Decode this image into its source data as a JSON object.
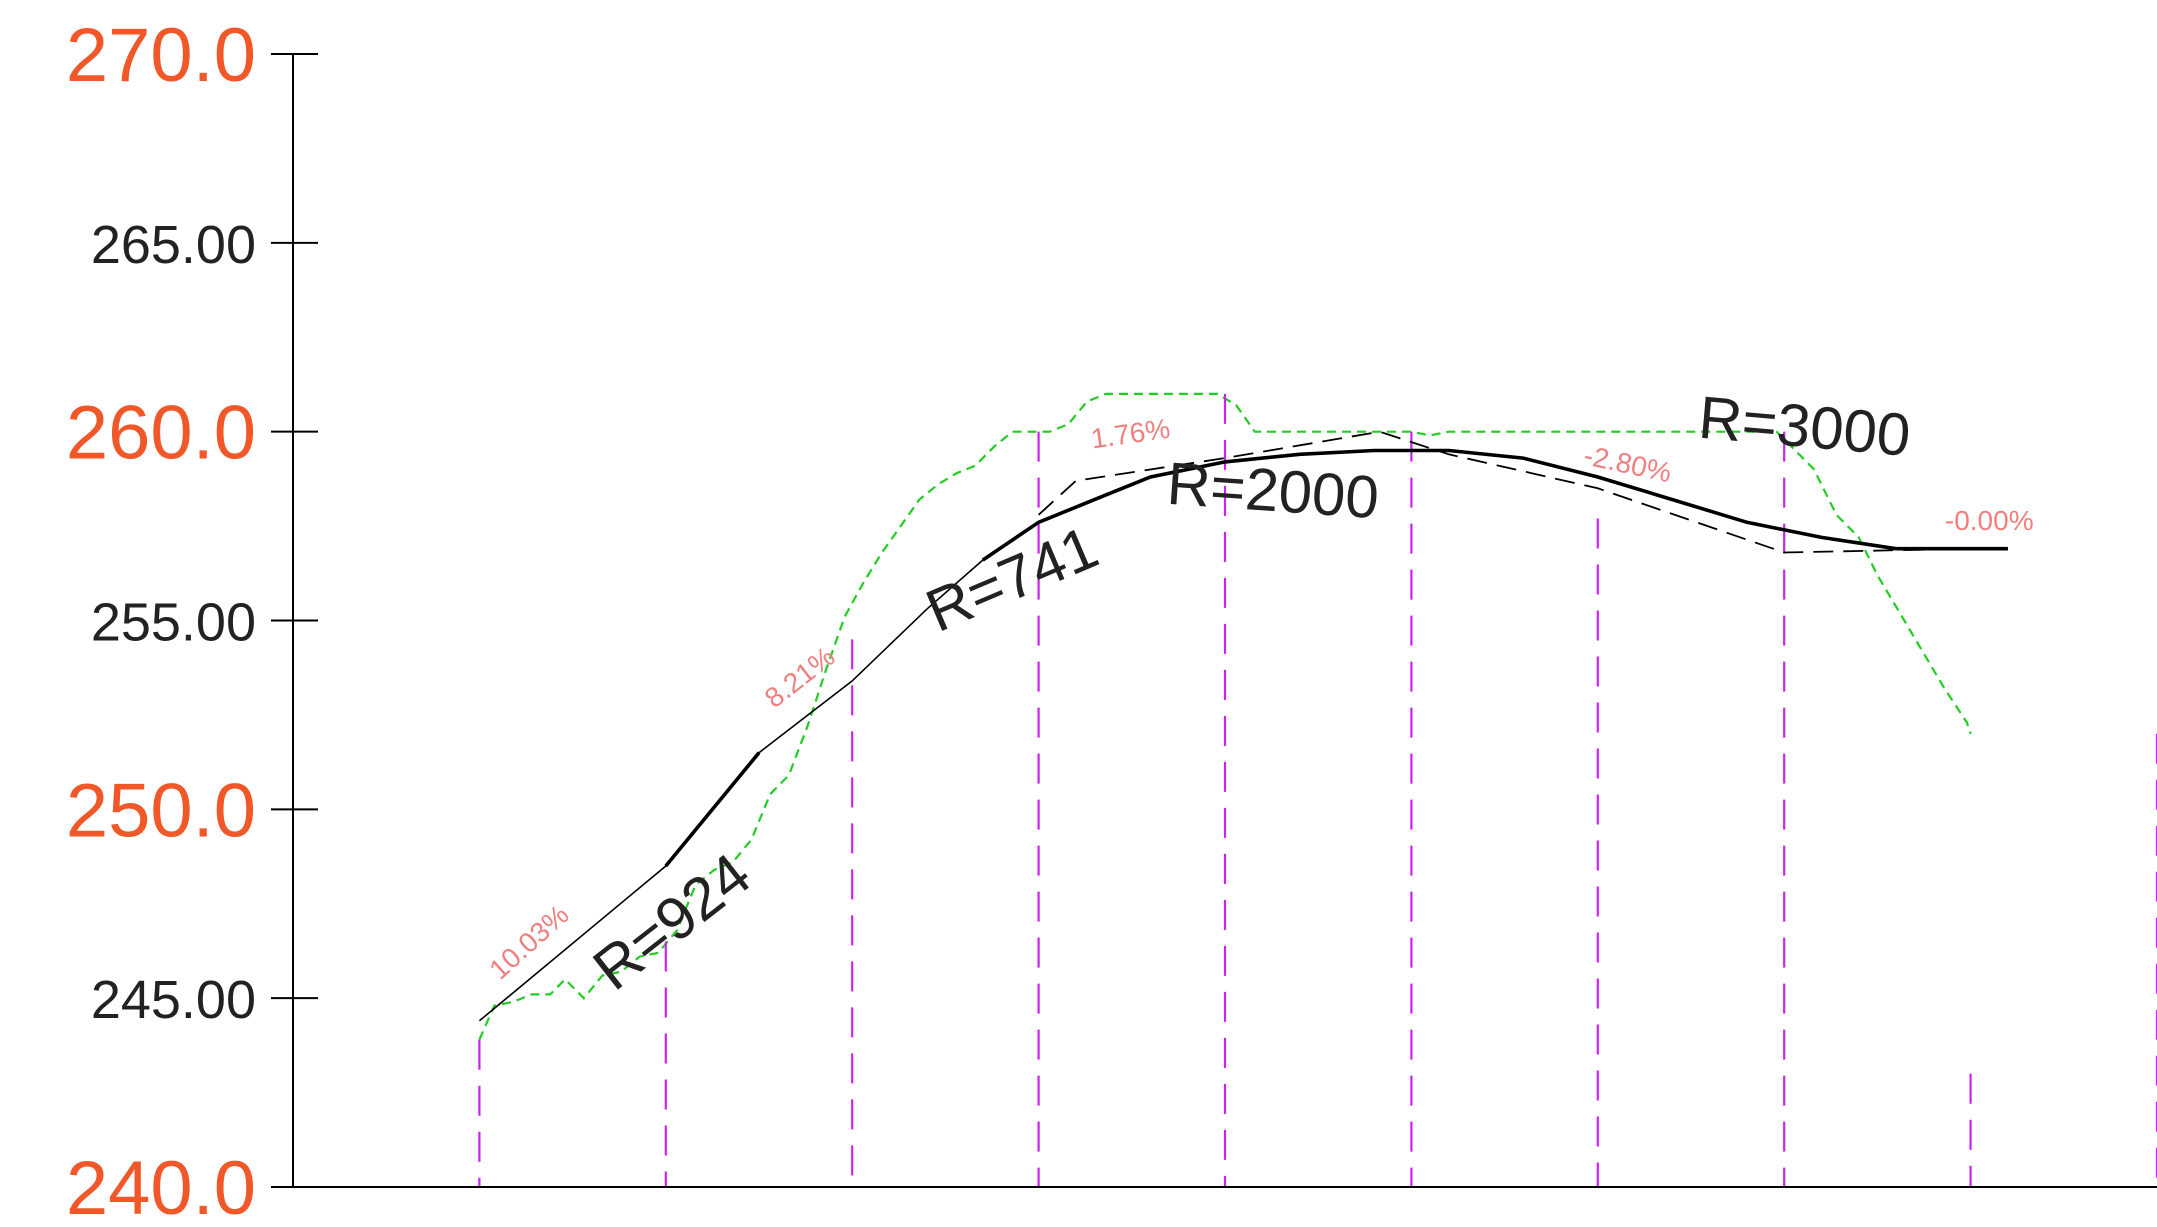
{
  "chart_data": {
    "type": "line",
    "title": "",
    "xlabel": "",
    "ylabel": "",
    "ylim": [
      240,
      270
    ],
    "xlim": [
      0,
      1000
    ],
    "grid": false,
    "y_ticks": [
      {
        "value": 270,
        "label": "270.0",
        "style": "major"
      },
      {
        "value": 265,
        "label": "265.00",
        "style": "minor"
      },
      {
        "value": 260,
        "label": "260.0",
        "style": "major"
      },
      {
        "value": 255,
        "label": "255.00",
        "style": "minor"
      },
      {
        "value": 250,
        "label": "250.0",
        "style": "major"
      },
      {
        "value": 245,
        "label": "245.00",
        "style": "minor"
      },
      {
        "value": 240,
        "label": "240.0",
        "style": "major"
      }
    ],
    "stations": [
      100,
      200,
      300,
      400,
      500,
      600,
      700,
      800,
      900,
      1000
    ],
    "station_tops": [
      243.9,
      246.5,
      254.5,
      260.0,
      261.0,
      260.0,
      257.7,
      260.0,
      243.0,
      252.0
    ],
    "series": [
      {
        "key": "design_grade",
        "color": "#000000",
        "points": [
          [
            100,
            244.4
          ],
          [
            200,
            248.5
          ],
          [
            250,
            251.5
          ],
          [
            300,
            253.4
          ],
          [
            340,
            255.3
          ],
          [
            370,
            256.6
          ],
          [
            400,
            257.6
          ],
          [
            430,
            258.2
          ],
          [
            460,
            258.8
          ],
          [
            500,
            259.2
          ],
          [
            540,
            259.4
          ],
          [
            580,
            259.5
          ],
          [
            620,
            259.5
          ],
          [
            660,
            259.3
          ],
          [
            700,
            258.8
          ],
          [
            740,
            258.2
          ],
          [
            780,
            257.6
          ],
          [
            820,
            257.2
          ],
          [
            860,
            256.9
          ],
          [
            900,
            256.9
          ],
          [
            920,
            256.9
          ]
        ]
      },
      {
        "key": "vertical_tangents",
        "color": "#000000",
        "points": [
          [
            400,
            257.8
          ],
          [
            420,
            258.7
          ],
          [
            500,
            259.3
          ],
          [
            583,
            260.0
          ],
          [
            620,
            259.4
          ],
          [
            700,
            258.5
          ],
          [
            800,
            256.8
          ],
          [
            900,
            256.9
          ],
          [
            920,
            256.9
          ]
        ]
      },
      {
        "key": "ground",
        "color": "#22cc22",
        "points": [
          [
            100,
            243.9
          ],
          [
            108,
            244.8
          ],
          [
            118,
            244.9
          ],
          [
            128,
            245.1
          ],
          [
            138,
            245.1
          ],
          [
            146,
            245.5
          ],
          [
            156,
            245.0
          ],
          [
            166,
            245.6
          ],
          [
            176,
            245.7
          ],
          [
            186,
            246.1
          ],
          [
            196,
            246.2
          ],
          [
            206,
            246.8
          ],
          [
            216,
            248.0
          ],
          [
            226,
            248.4
          ],
          [
            236,
            248.6
          ],
          [
            246,
            249.2
          ],
          [
            256,
            250.4
          ],
          [
            266,
            250.9
          ],
          [
            276,
            252.2
          ],
          [
            286,
            253.7
          ],
          [
            296,
            255.1
          ],
          [
            306,
            256.0
          ],
          [
            316,
            256.8
          ],
          [
            326,
            257.5
          ],
          [
            336,
            258.2
          ],
          [
            346,
            258.6
          ],
          [
            356,
            258.9
          ],
          [
            366,
            259.1
          ],
          [
            376,
            259.6
          ],
          [
            386,
            260.0
          ],
          [
            396,
            260.0
          ],
          [
            406,
            260.0
          ],
          [
            416,
            260.2
          ],
          [
            426,
            260.8
          ],
          [
            436,
            261.0
          ],
          [
            446,
            261.0
          ],
          [
            456,
            261.0
          ],
          [
            466,
            261.0
          ],
          [
            476,
            261.0
          ],
          [
            486,
            261.0
          ],
          [
            496,
            261.0
          ],
          [
            506,
            260.7
          ],
          [
            516,
            260.0
          ],
          [
            600,
            260.0
          ],
          [
            610,
            259.9
          ],
          [
            620,
            260.0
          ],
          [
            760,
            260.0
          ],
          [
            776,
            260.0
          ],
          [
            796,
            260.0
          ],
          [
            816,
            259.0
          ],
          [
            828,
            257.8
          ],
          [
            840,
            257.2
          ],
          [
            850,
            256.2
          ],
          [
            862,
            255.2
          ],
          [
            874,
            254.2
          ],
          [
            886,
            253.2
          ],
          [
            898,
            252.3
          ],
          [
            900,
            252.0
          ]
        ]
      }
    ],
    "grade_annotations": [
      {
        "text": "10.03%",
        "x": 130,
        "y": 246.3,
        "angle": -42
      },
      {
        "text": "8.21%",
        "x": 275,
        "y": 253.3,
        "angle": -38
      },
      {
        "text": "1.76%",
        "x": 450,
        "y": 259.7,
        "angle": -8
      },
      {
        "text": "-2.80%",
        "x": 715,
        "y": 258.9,
        "angle": 12
      },
      {
        "text": "-0.00%",
        "x": 910,
        "y": 257.4,
        "angle": 0
      }
    ],
    "radius_annotations": [
      {
        "text": "R=924",
        "x": 210,
        "y": 246.6,
        "angle": -38
      },
      {
        "text": "R=741",
        "x": 390,
        "y": 255.6,
        "angle": -23
      },
      {
        "text": "R=2000",
        "x": 525,
        "y": 257.9,
        "angle": 4
      },
      {
        "text": "R=3000",
        "x": 810,
        "y": 259.6,
        "angle": 5
      }
    ]
  }
}
